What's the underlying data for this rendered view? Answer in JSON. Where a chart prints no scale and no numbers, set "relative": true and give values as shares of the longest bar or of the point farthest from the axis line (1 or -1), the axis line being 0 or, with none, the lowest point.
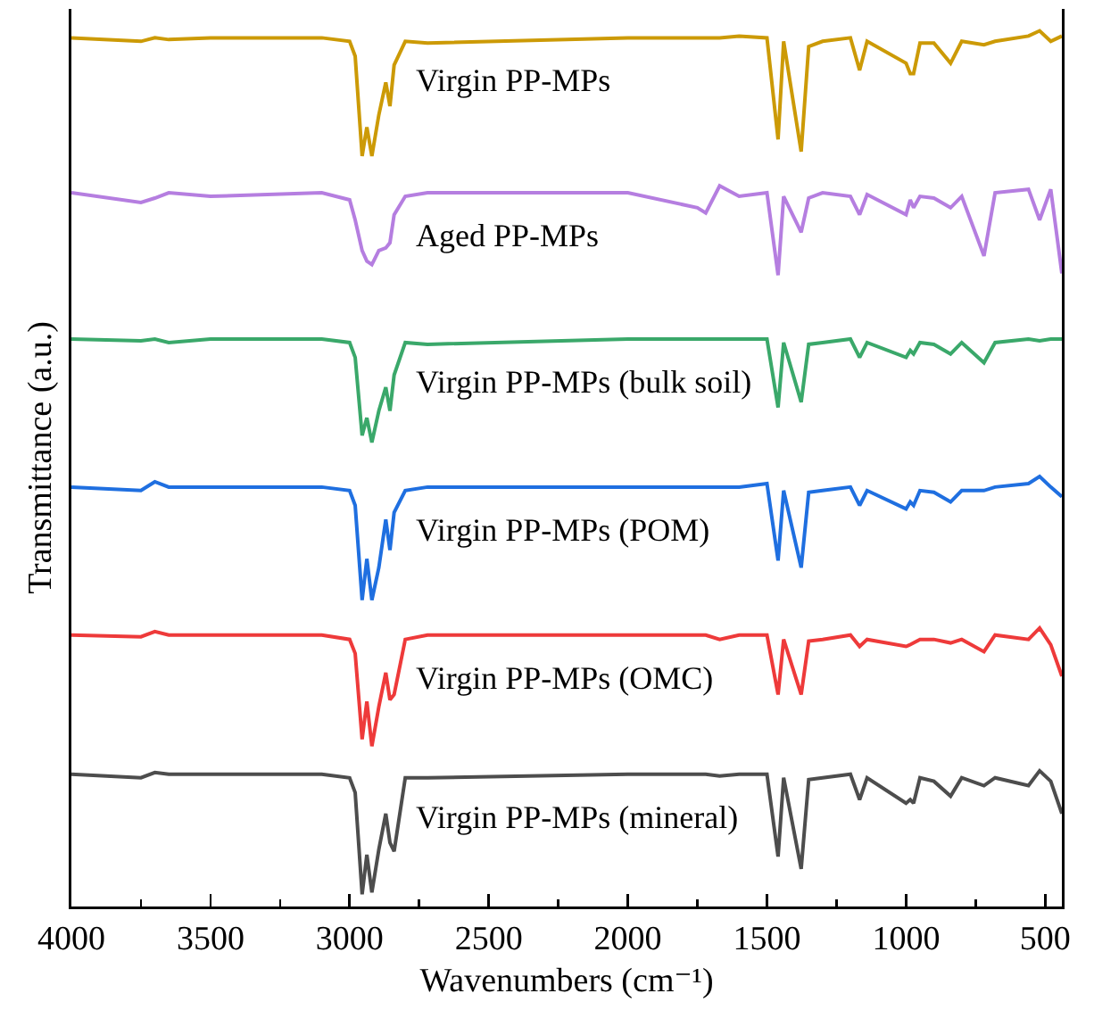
{
  "chart_data": {
    "type": "line",
    "relative": true,
    "xlabel": "Wavenumbers (cm⁻¹)",
    "ylabel": "Transmittance (a.u.)",
    "tick_labels": "x",
    "xlim": [
      4000,
      440
    ],
    "xticks": [
      4000,
      {
        "value": 3750,
        "label": null
      },
      3500,
      {
        "value": 3250,
        "label": null
      },
      3000,
      {
        "value": 2750,
        "label": null
      },
      2500,
      {
        "value": 2250,
        "label": null
      },
      2000,
      {
        "value": 1750,
        "label": null
      },
      1500,
      {
        "value": 1250,
        "label": null
      },
      1000,
      {
        "value": 750,
        "label": null
      },
      500
    ],
    "x": [
      4000,
      3750,
      3700,
      3650,
      3500,
      3100,
      3000,
      2980,
      2955,
      2938,
      2920,
      2895,
      2870,
      2855,
      2840,
      2800,
      2720,
      2000,
      1750,
      1720,
      1670,
      1600,
      1500,
      1460,
      1440,
      1377,
      1350,
      1300,
      1200,
      1167,
      1140,
      1000,
      985,
      973,
      950,
      900,
      840,
      800,
      720,
      680,
      560,
      520,
      480,
      440
    ],
    "series": [
      {
        "name": "Virgin PP-MPs",
        "color": "#cc9a06",
        "values": [
          0.992,
          0.988,
          0.992,
          0.99,
          0.992,
          0.992,
          0.988,
          0.971,
          0.857,
          0.89,
          0.857,
          0.904,
          0.941,
          0.914,
          0.961,
          0.988,
          0.986,
          0.992,
          0.992,
          0.992,
          0.992,
          0.994,
          0.992,
          0.876,
          0.988,
          0.862,
          0.982,
          0.988,
          0.992,
          0.955,
          0.988,
          0.963,
          0.951,
          0.951,
          0.986,
          0.986,
          0.963,
          0.988,
          0.984,
          0.988,
          0.994,
          1,
          0.988,
          0.994
        ]
      },
      {
        "name": "Aged PP-MPs",
        "color": "#b57ee0",
        "values": [
          0.815,
          0.804,
          0.809,
          0.815,
          0.811,
          0.815,
          0.807,
          0.784,
          0.749,
          0.737,
          0.733,
          0.749,
          0.752,
          0.758,
          0.79,
          0.811,
          0.815,
          0.815,
          0.798,
          0.792,
          0.823,
          0.811,
          0.815,
          0.721,
          0.811,
          0.77,
          0.809,
          0.815,
          0.811,
          0.79,
          0.813,
          0.79,
          0.807,
          0.798,
          0.811,
          0.809,
          0.798,
          0.811,
          0.743,
          0.815,
          0.819,
          0.784,
          0.819,
          0.723
        ]
      },
      {
        "name": "Virgin PP-MPs (bulk soil)",
        "color": "#3aa86a",
        "values": [
          0.648,
          0.646,
          0.648,
          0.644,
          0.648,
          0.648,
          0.644,
          0.627,
          0.538,
          0.558,
          0.53,
          0.566,
          0.593,
          0.566,
          0.607,
          0.644,
          0.642,
          0.648,
          0.648,
          0.648,
          0.648,
          0.648,
          0.648,
          0.57,
          0.644,
          0.576,
          0.642,
          0.644,
          0.648,
          0.627,
          0.644,
          0.627,
          0.635,
          0.631,
          0.644,
          0.642,
          0.631,
          0.644,
          0.621,
          0.644,
          0.648,
          0.646,
          0.648,
          0.648
        ]
      },
      {
        "name": "Virgin PP-MPs (POM)",
        "color": "#1f6fe0",
        "values": [
          0.479,
          0.475,
          0.485,
          0.479,
          0.479,
          0.479,
          0.475,
          0.458,
          0.35,
          0.397,
          0.35,
          0.387,
          0.442,
          0.407,
          0.45,
          0.475,
          0.479,
          0.479,
          0.479,
          0.479,
          0.479,
          0.479,
          0.483,
          0.395,
          0.475,
          0.387,
          0.473,
          0.475,
          0.479,
          0.458,
          0.475,
          0.454,
          0.462,
          0.458,
          0.475,
          0.473,
          0.462,
          0.475,
          0.475,
          0.479,
          0.483,
          0.491,
          0.479,
          0.468
        ]
      },
      {
        "name": "Virgin PP-MPs (OMC)",
        "color": "#ee3a3a",
        "values": [
          0.31,
          0.308,
          0.314,
          0.31,
          0.31,
          0.31,
          0.305,
          0.289,
          0.191,
          0.234,
          0.183,
          0.228,
          0.267,
          0.236,
          0.242,
          0.305,
          0.31,
          0.31,
          0.31,
          0.31,
          0.305,
          0.31,
          0.31,
          0.242,
          0.305,
          0.242,
          0.303,
          0.305,
          0.31,
          0.297,
          0.305,
          0.297,
          0.299,
          0.301,
          0.305,
          0.305,
          0.301,
          0.305,
          0.291,
          0.31,
          0.305,
          0.318,
          0.299,
          0.263
        ]
      },
      {
        "name": "Virgin PP-MPs (mineral)",
        "color": "#4d4d4d",
        "values": [
          0.151,
          0.147,
          0.153,
          0.151,
          0.151,
          0.151,
          0.147,
          0.13,
          0.014,
          0.059,
          0.016,
          0.065,
          0.106,
          0.073,
          0.063,
          0.147,
          0.147,
          0.151,
          0.151,
          0.151,
          0.149,
          0.151,
          0.151,
          0.057,
          0.147,
          0.043,
          0.145,
          0.147,
          0.151,
          0.122,
          0.147,
          0.118,
          0.122,
          0.118,
          0.147,
          0.143,
          0.126,
          0.147,
          0.138,
          0.147,
          0.138,
          0.155,
          0.143,
          0.106
        ]
      }
    ]
  }
}
